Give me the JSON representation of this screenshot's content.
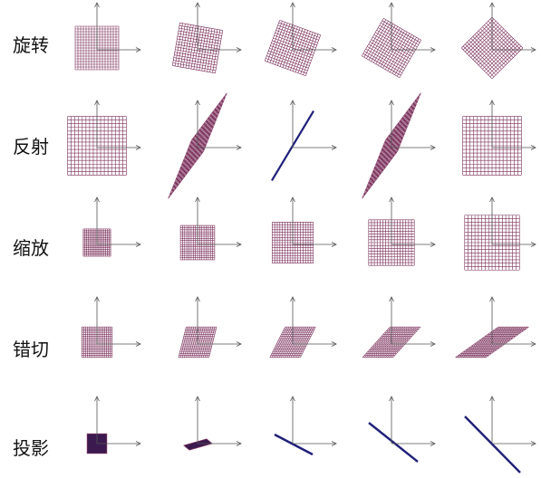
{
  "rows": [
    {
      "label": "旋转",
      "panels": [
        {
          "kind": "rotate",
          "angle_deg": 0
        },
        {
          "kind": "rotate",
          "angle_deg": 10
        },
        {
          "kind": "rotate",
          "angle_deg": 20
        },
        {
          "kind": "rotate",
          "angle_deg": 30
        },
        {
          "kind": "rotate",
          "angle_deg": 45
        }
      ]
    },
    {
      "label": "反射",
      "panels": [
        {
          "kind": "matrix",
          "m": [
            [
              1,
              0
            ],
            [
              0,
              1
            ]
          ]
        },
        {
          "kind": "matrix",
          "m": [
            [
              0.6,
              0.4
            ],
            [
              0.8,
              1.0
            ]
          ]
        },
        {
          "kind": "matrix",
          "m": [
            [
              0.6,
              0.6
            ],
            [
              1.0,
              1.0
            ]
          ]
        },
        {
          "kind": "matrix",
          "m": [
            [
              0.6,
              0.4
            ],
            [
              0.8,
              1.0
            ]
          ]
        },
        {
          "kind": "matrix",
          "m": [
            [
              1,
              0
            ],
            [
              0,
              1
            ]
          ]
        }
      ]
    },
    {
      "label": "缩放",
      "panels": [
        {
          "kind": "scale",
          "s": 0.6
        },
        {
          "kind": "scale",
          "s": 0.75
        },
        {
          "kind": "scale",
          "s": 0.9
        },
        {
          "kind": "scale",
          "s": 1.0
        },
        {
          "kind": "scale",
          "s": 1.2
        }
      ]
    },
    {
      "label": "错切",
      "panels": [
        {
          "kind": "shear",
          "k": 0.0
        },
        {
          "kind": "shear",
          "k": 0.25
        },
        {
          "kind": "shear",
          "k": 0.5
        },
        {
          "kind": "shear",
          "k": 0.9
        },
        {
          "kind": "shear",
          "k": 1.4
        }
      ]
    },
    {
      "label": "投影",
      "panels": [
        {
          "kind": "projection",
          "variant": "square"
        },
        {
          "kind": "projection",
          "variant": "flat"
        },
        {
          "kind": "projection",
          "variant": "line-short"
        },
        {
          "kind": "projection",
          "variant": "line-mid"
        },
        {
          "kind": "projection",
          "variant": "line-long"
        }
      ]
    }
  ],
  "style": {
    "grid_color": "#7a2e5a",
    "line_color": "#1f1f7a",
    "axis_color": "#555555",
    "fill_color": "#3a1a4f",
    "grid_divisions": 16
  }
}
